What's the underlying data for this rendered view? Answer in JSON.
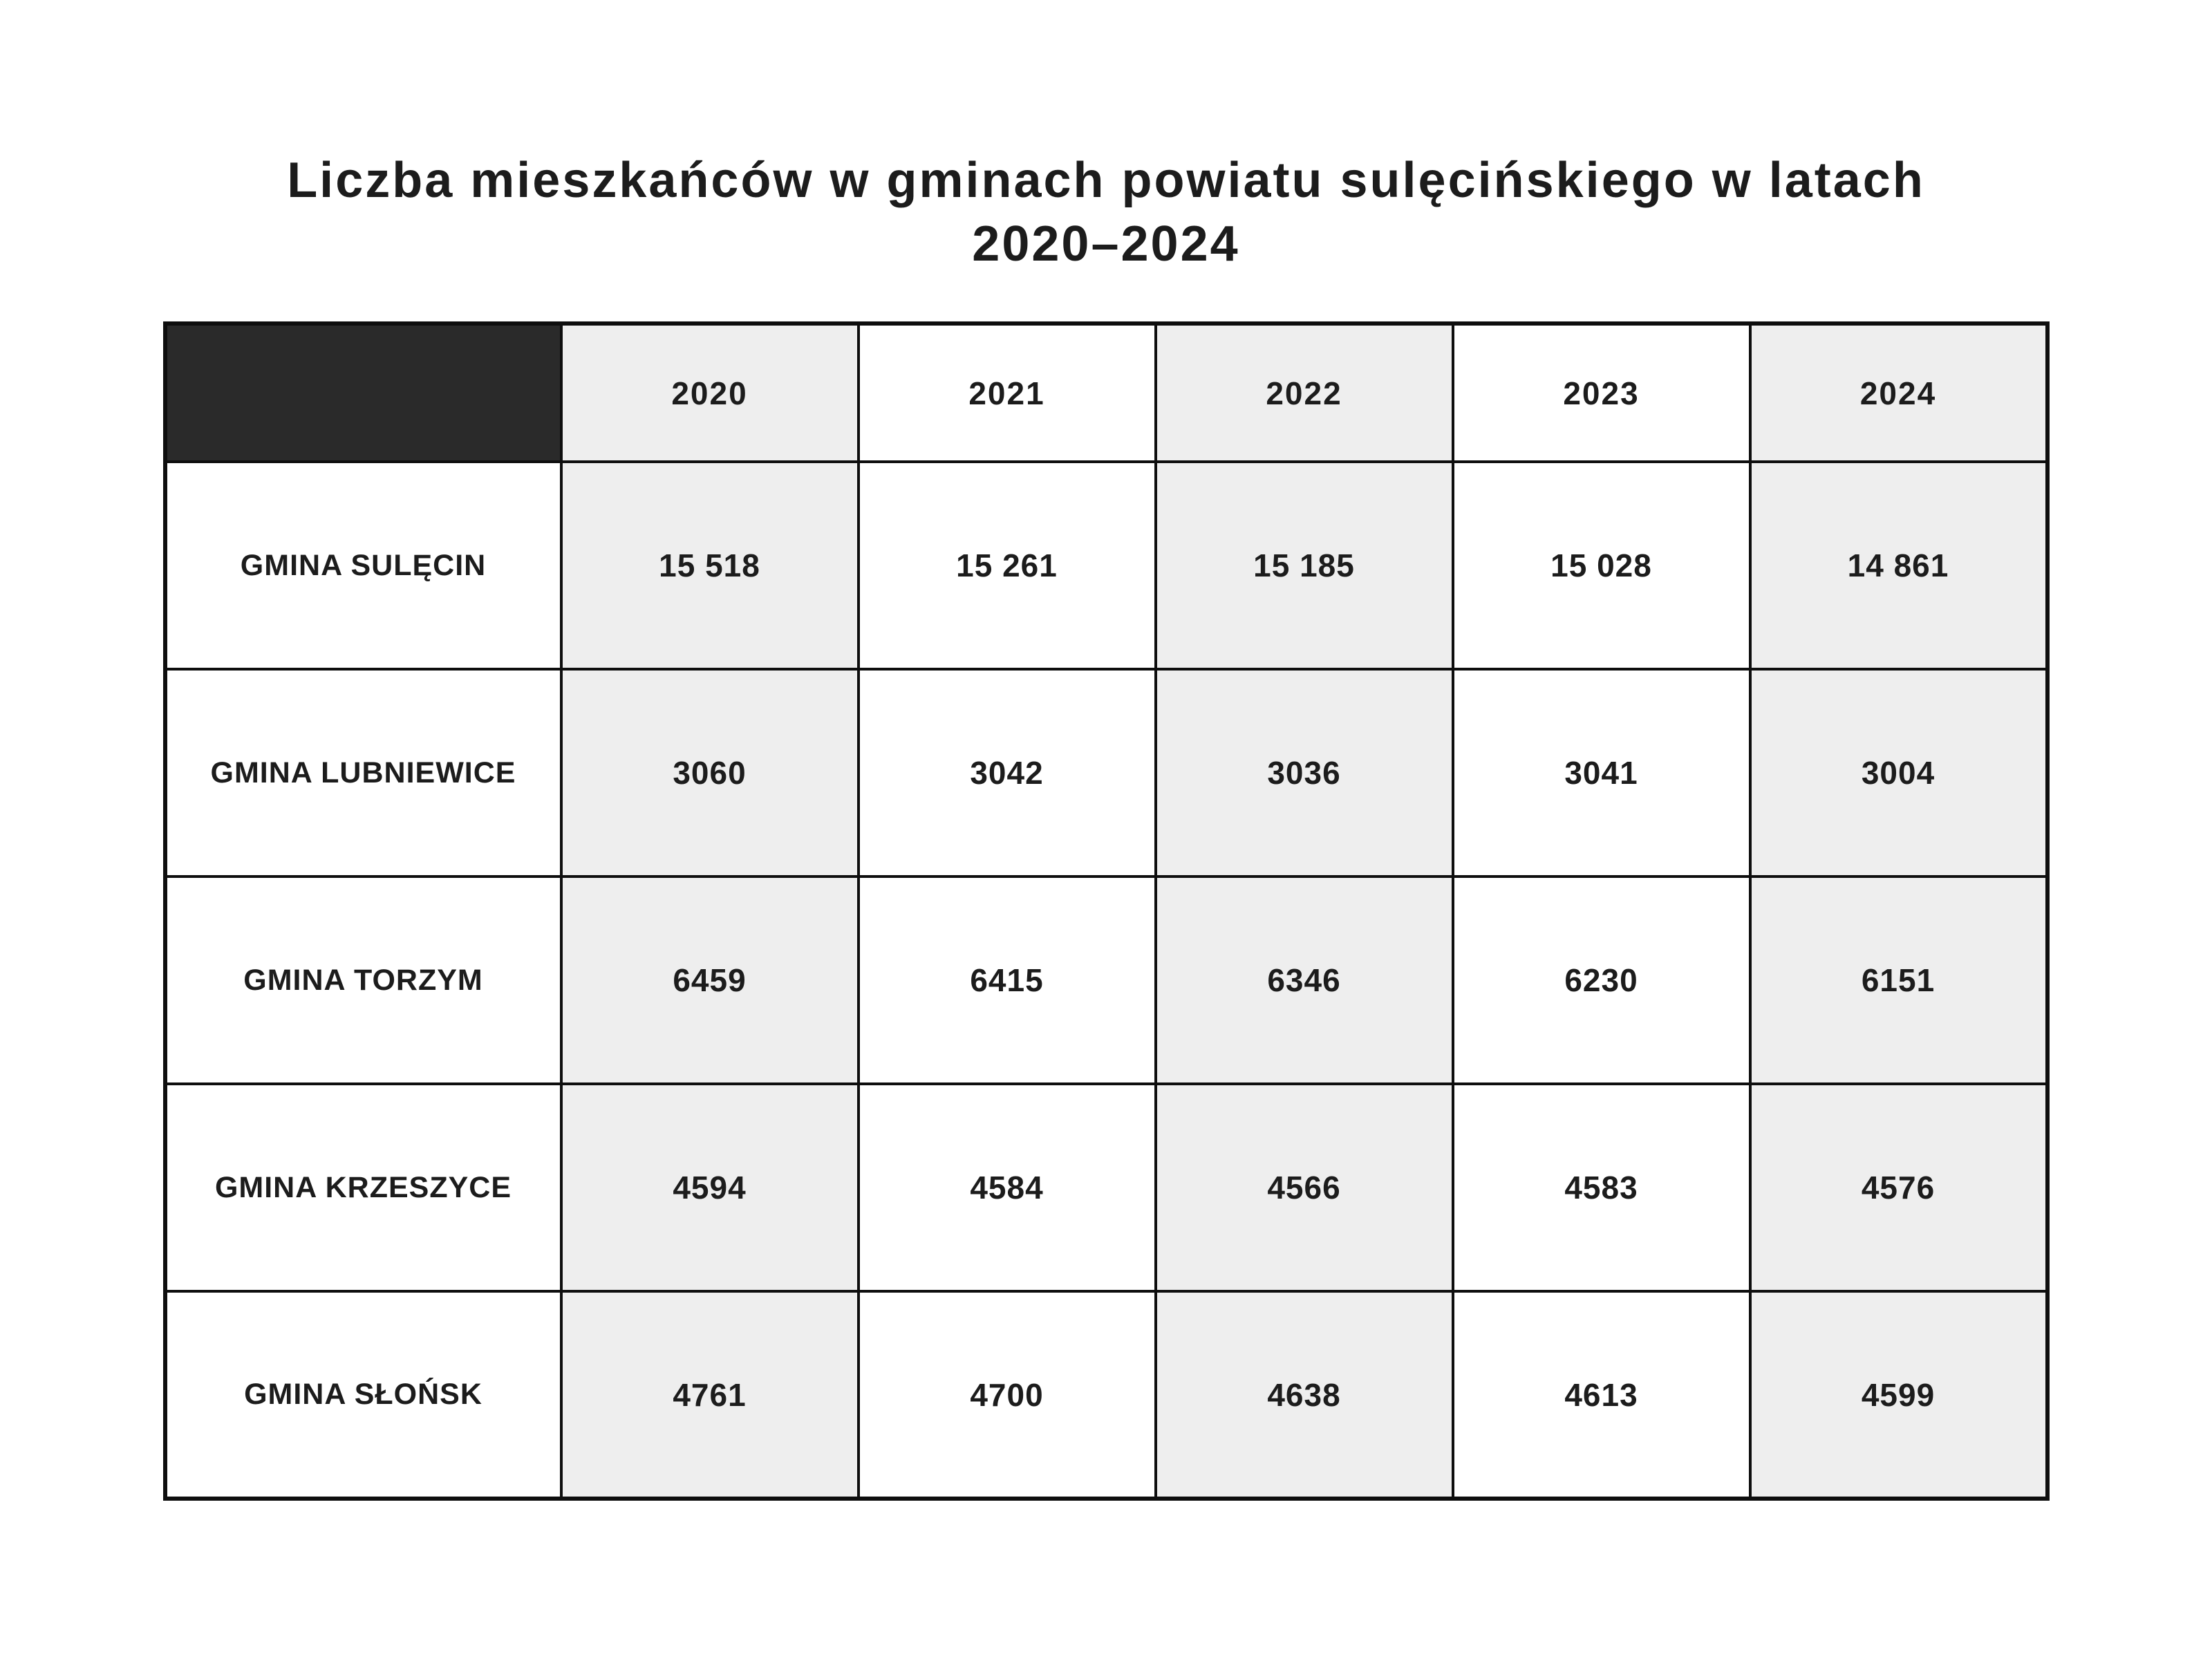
{
  "title": {
    "line1": "Liczba mieszkańców w gminach powiatu sulęcińskiego w latach",
    "line2": "2020–2024"
  },
  "table": {
    "corner": "",
    "columns": [
      "2020",
      "2021",
      "2022",
      "2023",
      "2024"
    ],
    "rows": [
      {
        "label": "GMINA SULĘCIN",
        "values": [
          "15 518",
          "15 261",
          "15 185",
          "15 028",
          "14 861"
        ]
      },
      {
        "label": "GMINA LUBNIEWICE",
        "values": [
          "3060",
          "3042",
          "3036",
          "3041",
          "3004"
        ]
      },
      {
        "label": "GMINA TORZYM",
        "values": [
          "6459",
          "6415",
          "6346",
          "6230",
          "6151"
        ]
      },
      {
        "label": "GMINA KRZESZYCE",
        "values": [
          "4594",
          "4584",
          "4566",
          "4583",
          "4576"
        ]
      },
      {
        "label": "GMINA SŁOŃSK",
        "values": [
          "4761",
          "4700",
          "4638",
          "4613",
          "4599"
        ]
      }
    ]
  },
  "colors": {
    "background": "#ffffff",
    "corner_cell_bg": "#2a2a2a",
    "stripe_column_bg": "#eeeeee",
    "plain_column_bg": "#ffffff",
    "border": "#0e0e0e",
    "text": "#1c1c1c"
  },
  "chart_data": {
    "type": "table",
    "title": "Liczba mieszkańców w gminach powiatu sulęcińskiego w latach 2020–2024",
    "categories": [
      "2020",
      "2021",
      "2022",
      "2023",
      "2024"
    ],
    "series": [
      {
        "name": "GMINA SULĘCIN",
        "values": [
          15518,
          15261,
          15185,
          15028,
          14861
        ]
      },
      {
        "name": "GMINA LUBNIEWICE",
        "values": [
          3060,
          3042,
          3036,
          3041,
          3004
        ]
      },
      {
        "name": "GMINA TORZYM",
        "values": [
          6459,
          6415,
          6346,
          6230,
          6151
        ]
      },
      {
        "name": "GMINA KRZESZYCE",
        "values": [
          4594,
          4584,
          4566,
          4583,
          4576
        ]
      },
      {
        "name": "GMINA SŁOŃSK",
        "values": [
          4761,
          4700,
          4638,
          4613,
          4599
        ]
      }
    ],
    "layout": {
      "striped_columns": [
        0,
        2,
        4
      ],
      "corner_cell": "dark",
      "grid": true
    }
  }
}
